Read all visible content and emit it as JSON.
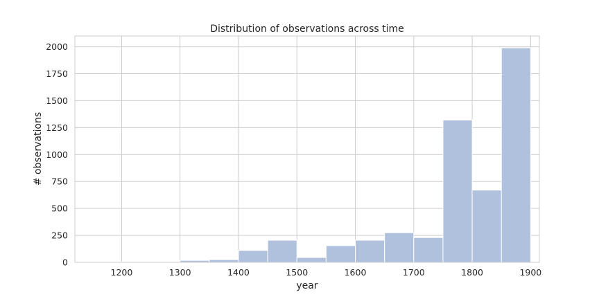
{
  "chart_data": {
    "type": "bar",
    "title": "Distribution of observations across time",
    "xlabel": "year",
    "ylabel": "# observations",
    "xlim": [
      1120,
      1915
    ],
    "ylim": [
      0,
      2100
    ],
    "xticks": [
      1200,
      1300,
      1400,
      1500,
      1600,
      1700,
      1800,
      1900
    ],
    "yticks": [
      0,
      250,
      500,
      750,
      1000,
      1250,
      1500,
      1750,
      2000
    ],
    "grid": true,
    "bin_edges": [
      1150,
      1200,
      1250,
      1300,
      1350,
      1400,
      1450,
      1500,
      1550,
      1600,
      1650,
      1700,
      1750,
      1800,
      1850,
      1900
    ],
    "values": [
      2,
      5,
      5,
      18,
      25,
      110,
      205,
      45,
      155,
      205,
      275,
      230,
      1320,
      670,
      1990
    ],
    "colors": {
      "bar": "#b0c1de",
      "bar_edge": "#ffffff",
      "grid": "#cccccc",
      "spine": "#cccccc"
    }
  }
}
